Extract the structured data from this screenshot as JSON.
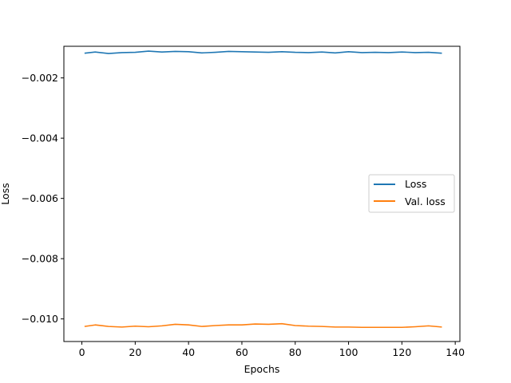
{
  "chart_data": {
    "type": "line",
    "title": "",
    "xlabel": "Epochs",
    "ylabel": "Loss",
    "xlim": [
      -6.75,
      141.75
    ],
    "ylim": [
      -0.01075,
      -0.00095
    ],
    "xticks": [
      0,
      20,
      40,
      60,
      80,
      100,
      120,
      140
    ],
    "xtick_labels": [
      "0",
      "20",
      "40",
      "60",
      "80",
      "100",
      "120",
      "140"
    ],
    "yticks": [
      -0.002,
      -0.004,
      -0.006,
      -0.008,
      -0.01
    ],
    "ytick_labels": [
      "−0.002",
      "−0.004",
      "−0.006",
      "−0.008",
      "−0.010"
    ],
    "grid": false,
    "legend_position": "center-right",
    "x": [
      1,
      5,
      10,
      15,
      20,
      25,
      30,
      35,
      40,
      45,
      50,
      55,
      60,
      65,
      70,
      75,
      80,
      85,
      90,
      95,
      100,
      105,
      110,
      115,
      120,
      125,
      130,
      135
    ],
    "series": [
      {
        "name": "Loss",
        "color": "#1f77b4",
        "values": [
          -0.00118,
          -0.00114,
          -0.00119,
          -0.00116,
          -0.00115,
          -0.00111,
          -0.00114,
          -0.00112,
          -0.00113,
          -0.00117,
          -0.00115,
          -0.00112,
          -0.00113,
          -0.00114,
          -0.00115,
          -0.00113,
          -0.00115,
          -0.00116,
          -0.00114,
          -0.00117,
          -0.00113,
          -0.00116,
          -0.00115,
          -0.00116,
          -0.00114,
          -0.00116,
          -0.00115,
          -0.00118
        ]
      },
      {
        "name": "Val. loss",
        "color": "#ff7f0e",
        "values": [
          -0.01025,
          -0.0102,
          -0.01025,
          -0.01027,
          -0.01024,
          -0.01026,
          -0.01023,
          -0.01018,
          -0.0102,
          -0.01025,
          -0.01022,
          -0.0102,
          -0.0102,
          -0.01017,
          -0.01018,
          -0.01016,
          -0.01022,
          -0.01024,
          -0.01025,
          -0.01027,
          -0.01027,
          -0.01028,
          -0.01028,
          -0.01028,
          -0.01028,
          -0.01026,
          -0.01023,
          -0.01027
        ]
      }
    ]
  }
}
